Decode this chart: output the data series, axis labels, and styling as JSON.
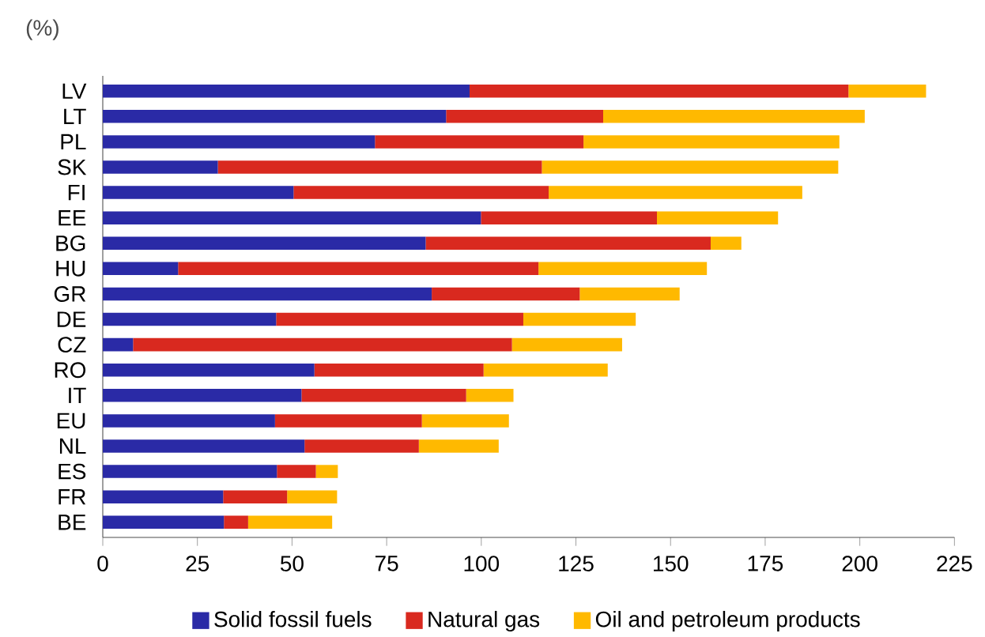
{
  "chart_data": {
    "type": "bar",
    "orientation": "horizontal",
    "stacked": true,
    "ylabel": "(%)",
    "categories": [
      "LV",
      "LT",
      "PL",
      "SK",
      "FI",
      "EE",
      "BG",
      "HU",
      "GR",
      "DE",
      "CZ",
      "RO",
      "IT",
      "EU",
      "NL",
      "ES",
      "FR",
      "BE"
    ],
    "series": [
      {
        "name": "Solid fossil fuels",
        "color": "#2a2aa6",
        "values": [
          96.9,
          90.7,
          71.9,
          30.4,
          50.4,
          99.9,
          85.3,
          19.9,
          86.9,
          45.8,
          8.0,
          55.9,
          52.5,
          45.5,
          53.3,
          46.0,
          31.8,
          32.0
        ]
      },
      {
        "name": "Natural gas",
        "color": "#d9291f",
        "values": [
          100.1,
          41.5,
          55.1,
          85.6,
          67.4,
          46.5,
          75.3,
          95.2,
          39.1,
          65.3,
          100.1,
          44.7,
          43.5,
          38.8,
          30.2,
          10.3,
          16.9,
          6.4
        ]
      },
      {
        "name": "Oil and petroleum products",
        "color": "#ffb900",
        "values": [
          20.5,
          69.1,
          67.6,
          78.3,
          67.0,
          32.0,
          8.1,
          44.5,
          26.4,
          29.7,
          29.1,
          32.8,
          12.5,
          23.0,
          21.1,
          5.8,
          13.2,
          22.2
        ]
      }
    ],
    "xlim": [
      0,
      225
    ],
    "xticks": [
      0,
      25,
      50,
      75,
      100,
      125,
      150,
      175,
      200,
      225
    ],
    "legend": "bottom"
  }
}
